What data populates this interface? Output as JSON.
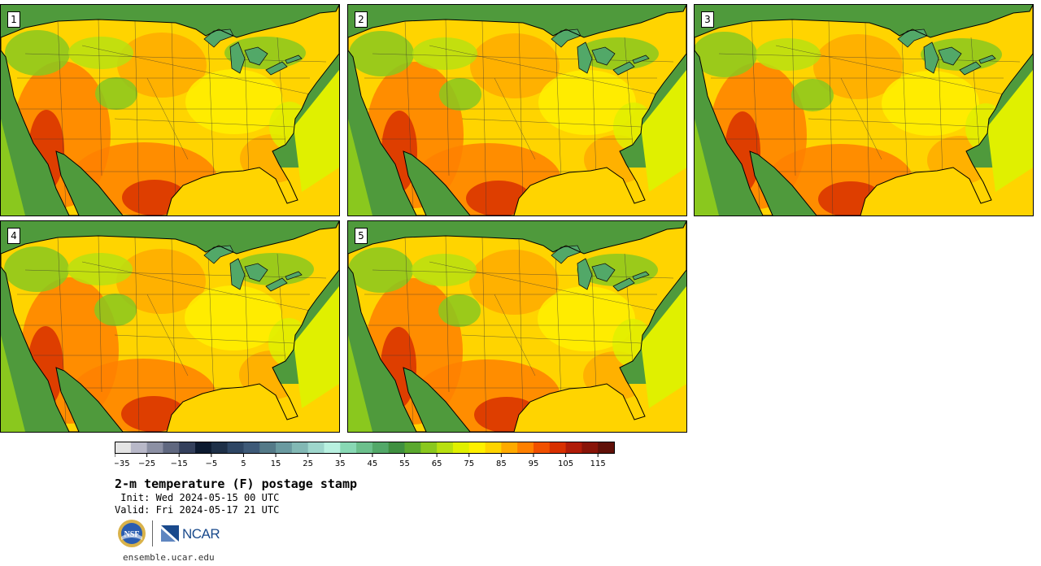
{
  "panels": [
    {
      "label": "1",
      "hot_shift": 0
    },
    {
      "label": "2",
      "hot_shift": 1
    },
    {
      "label": "3",
      "hot_shift": 2
    },
    {
      "label": "4",
      "hot_shift": 3
    },
    {
      "label": "5",
      "hot_shift": 4
    }
  ],
  "colorbar": {
    "colors": [
      "#e4e4e4",
      "#b8b8c8",
      "#8c90a4",
      "#606880",
      "#34405c",
      "#0c1a30",
      "#1e3048",
      "#2e4664",
      "#3e5a78",
      "#547a88",
      "#6a9aa0",
      "#82b8b4",
      "#9ed6cc",
      "#b8f0e0",
      "#88d8b4",
      "#6cc08c",
      "#52a868",
      "#3f9040",
      "#5aa82e",
      "#8ac81e",
      "#b8e010",
      "#e0f000",
      "#fff000",
      "#ffd400",
      "#ffaa00",
      "#ff8000",
      "#f05000",
      "#d83000",
      "#b01c08",
      "#881408",
      "#601008"
    ],
    "tick_labels": [
      "−35",
      "−25",
      "−15",
      "−5",
      "5",
      "15",
      "25",
      "35",
      "45",
      "55",
      "65",
      "75",
      "85",
      "95",
      "105",
      "115"
    ]
  },
  "title": "2-m temperature (F) postage stamp",
  "init_line": " Init: Wed 2024-05-15 00 UTC",
  "valid_line": "Valid: Fri 2024-05-17 21 UTC",
  "logos": {
    "nsf_text": "NSF",
    "ncar_text": "NCAR"
  },
  "url": "ensemble.ucar.edu"
}
